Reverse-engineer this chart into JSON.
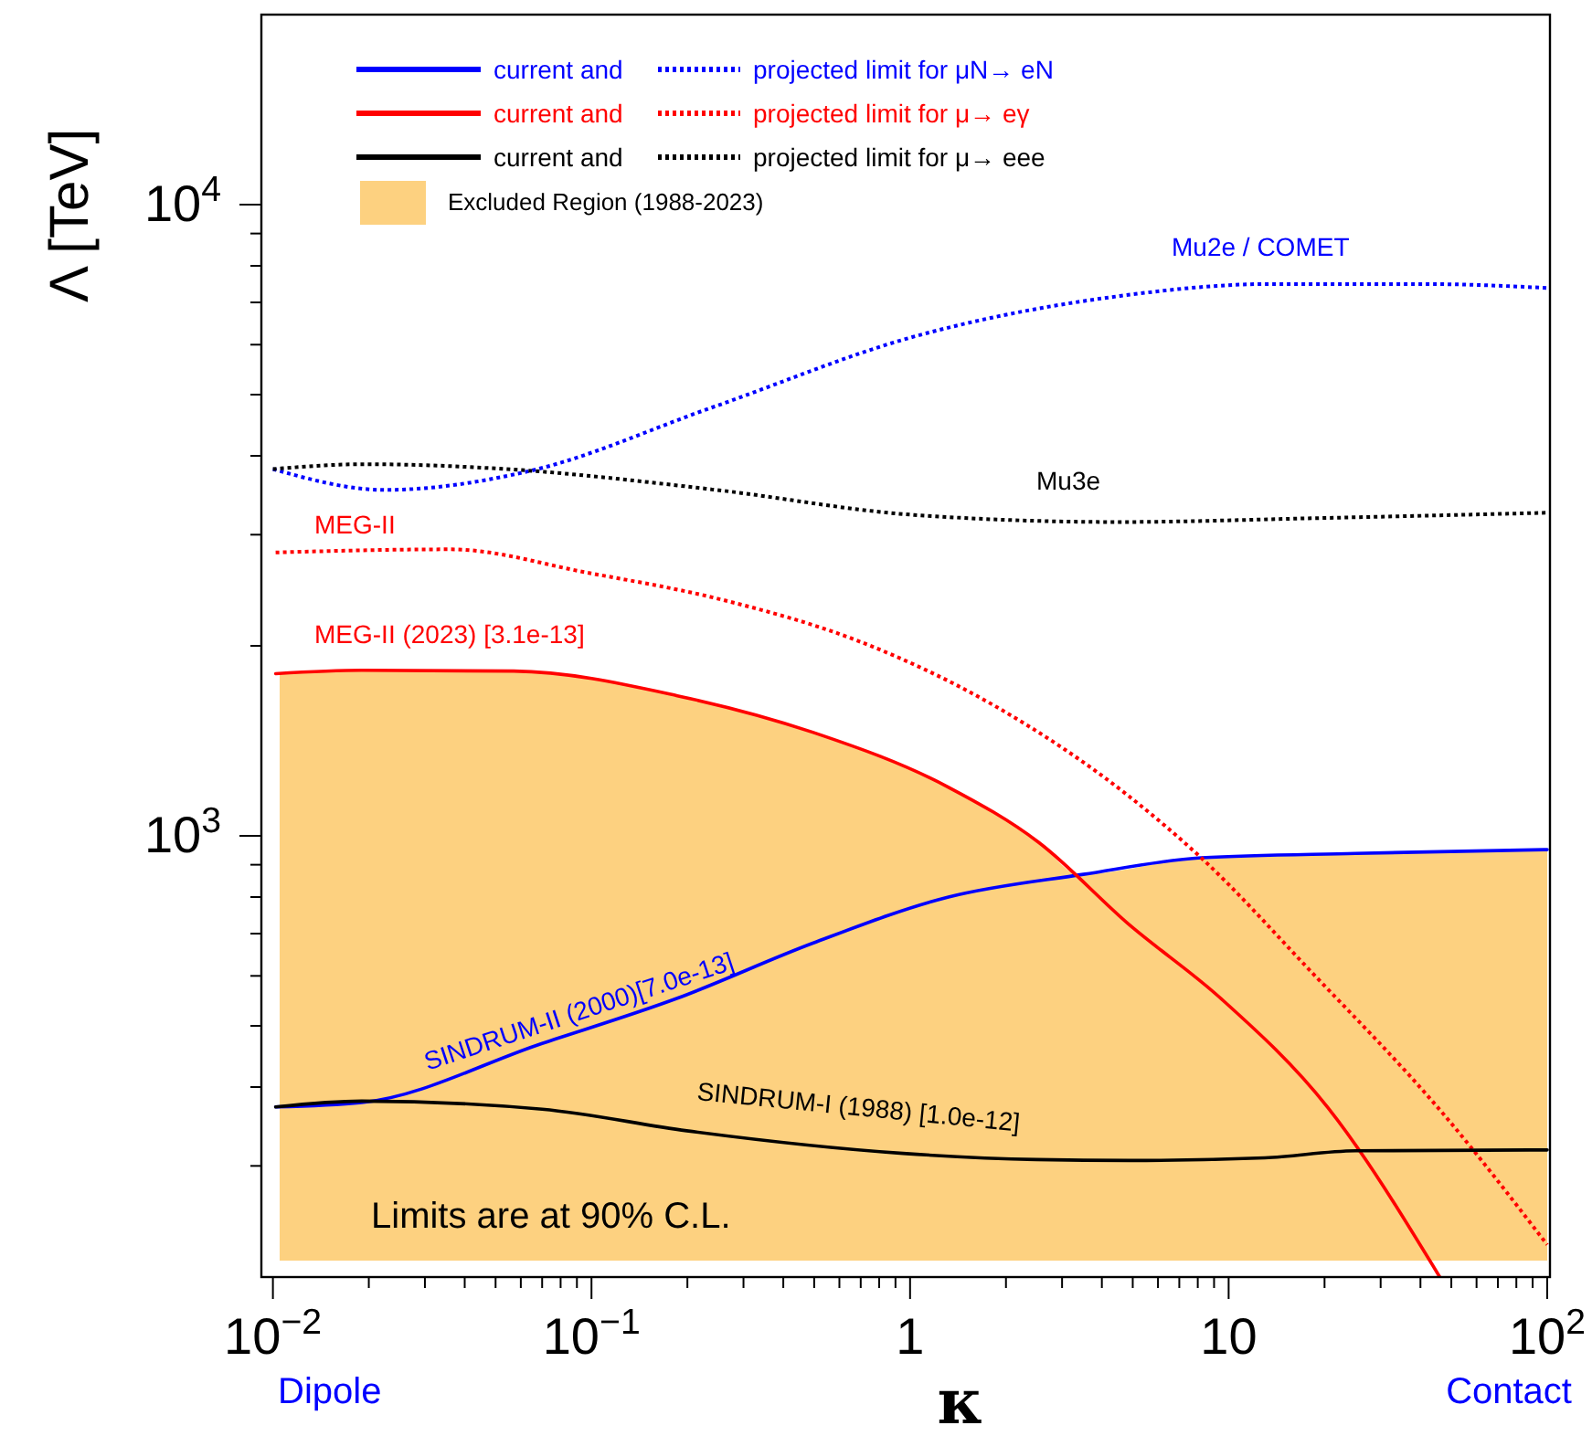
{
  "chart_data": {
    "type": "line",
    "xlabel": "κ",
    "ylabel": "Λ [TeV]",
    "log": "xy",
    "legend": "top left",
    "xlim": [
      0.0092,
      102
    ],
    "ylim": [
      200,
      20000
    ],
    "xticks": [
      {
        "value": 0.01,
        "label": "10$^{−2}$"
      },
      {
        "value": 0.02,
        "label": null
      },
      {
        "value": 0.03,
        "label": null
      },
      {
        "value": 0.04,
        "label": null
      },
      {
        "value": 0.05,
        "label": null
      },
      {
        "value": 0.06,
        "label": null
      },
      {
        "value": 0.07,
        "label": null
      },
      {
        "value": 0.08,
        "label": null
      },
      {
        "value": 0.09,
        "label": null
      },
      {
        "value": 0.1,
        "label": "10$^{−1}$"
      },
      {
        "value": 0.2,
        "label": null
      },
      {
        "value": 0.3,
        "label": null
      },
      {
        "value": 0.4,
        "label": null
      },
      {
        "value": 0.5,
        "label": null
      },
      {
        "value": 0.6,
        "label": null
      },
      {
        "value": 0.7,
        "label": null
      },
      {
        "value": 0.8,
        "label": null
      },
      {
        "value": 0.9,
        "label": null
      },
      1,
      {
        "value": 2,
        "label": null
      },
      {
        "value": 3,
        "label": null
      },
      {
        "value": 4,
        "label": null
      },
      {
        "value": 5,
        "label": null
      },
      {
        "value": 6,
        "label": null
      },
      {
        "value": 7,
        "label": null
      },
      {
        "value": 8,
        "label": null
      },
      {
        "value": 9,
        "label": null
      },
      10,
      {
        "value": 20,
        "label": null
      },
      {
        "value": 30,
        "label": null
      },
      {
        "value": 40,
        "label": null
      },
      {
        "value": 50,
        "label": null
      },
      {
        "value": 60,
        "label": null
      },
      {
        "value": 70,
        "label": null
      },
      {
        "value": 80,
        "label": null
      },
      {
        "value": 90,
        "label": null
      },
      {
        "value": 100,
        "label": "10$^{2}$"
      }
    ],
    "yticks": [
      {
        "value": 300,
        "label": null
      },
      {
        "value": 400,
        "label": null
      },
      {
        "value": 500,
        "label": null
      },
      {
        "value": 600,
        "label": null
      },
      {
        "value": 700,
        "label": null
      },
      {
        "value": 800,
        "label": null
      },
      {
        "value": 900,
        "label": null
      },
      {
        "value": 1000,
        "label": "10$^{3}$"
      },
      {
        "value": 2000,
        "label": null
      },
      {
        "value": 3000,
        "label": null
      },
      {
        "value": 4000,
        "label": null
      },
      {
        "value": 5000,
        "label": null
      },
      {
        "value": 6000,
        "label": null
      },
      {
        "value": 7000,
        "label": null
      },
      {
        "value": 8000,
        "label": null
      },
      {
        "value": 9000,
        "label": null
      },
      {
        "value": 10000,
        "label": "10$^{4}$"
      }
    ],
    "series": [
      {
        "type": "area",
        "name": "Excluded Region (1988-2023)",
        "color": "#fdd180",
        "x": [
          0.0105,
          0.019,
          0.057,
          0.186,
          0.495,
          1.32,
          2.53,
          3.4,
          8.2,
          25,
          100
        ],
        "values": [
          1807,
          1829,
          1824,
          1667,
          1459,
          1194,
          977,
          869,
          923,
          938,
          951
        ]
      },
      {
        "name": "current and",
        "color": "#0000ff",
        "line_style": "solid",
        "x": [
          0.0102,
          0.019,
          0.07,
          0.186,
          0.495,
          1.32,
          3.5,
          8.2,
          25,
          100
        ],
        "values": [
          372,
          378,
          469,
          553,
          676,
          800,
          869,
          923,
          938,
          951
        ]
      },
      {
        "name": "projected limit for μN→ eN",
        "color": "#0000ff",
        "line_style": "dotted",
        "x": [
          0.01,
          0.0225,
          0.063,
          0.238,
          1.03,
          4.5,
          13.5,
          41,
          100
        ],
        "values": [
          3811,
          3532,
          3778,
          4768,
          6180,
          7160,
          7486,
          7486,
          7380
        ]
      },
      {
        "name": "current and",
        "color": "#ff0000",
        "line_style": "solid",
        "x": [
          0.0102,
          0.019,
          0.057,
          0.186,
          0.495,
          1.32,
          2.53,
          4.88,
          9.4,
          20.5,
          46
        ],
        "values": [
          1807,
          1829,
          1824,
          1667,
          1459,
          1194,
          977,
          723,
          554,
          371,
          200
        ]
      },
      {
        "name": "projected limit for μ→ eγ",
        "color": "#ff0000",
        "line_style": "dotted",
        "x": [
          0.0102,
          0.036,
          0.097,
          0.258,
          0.687,
          1.83,
          4.88,
          8.2,
          18,
          48,
          100
        ],
        "values": [
          2812,
          2844,
          2612,
          2365,
          2036,
          1610,
          1154,
          923,
          612,
          359,
          225
        ]
      },
      {
        "name": "current and",
        "color": "#000000",
        "line_style": "solid",
        "x": [
          0.0102,
          0.019,
          0.07,
          0.199,
          0.95,
          2.5,
          4.9,
          13,
          25,
          100
        ],
        "values": [
          372,
          380,
          369,
          341,
          314,
          307,
          306,
          309,
          317,
          318
        ]
      },
      {
        "name": "projected limit for μ→ eee",
        "color": "#000000",
        "line_style": "dotted",
        "x": [
          0.01,
          0.0194,
          0.054,
          0.238,
          1.03,
          4.5,
          19.6,
          100
        ],
        "values": [
          3811,
          3880,
          3811,
          3540,
          3224,
          3142,
          3188,
          3250
        ]
      }
    ],
    "annotations": [
      "Mu2e / COMET",
      "Mu3e",
      "MEG-II",
      "MEG-II (2023) [3.1e-13]",
      "SINDRUM-II (2000)[7.0e-13]",
      "SINDRUM-I (1988) [1.0e-12]",
      "Limits are at 90% C.L.",
      "Dipole",
      "Contact"
    ]
  }
}
